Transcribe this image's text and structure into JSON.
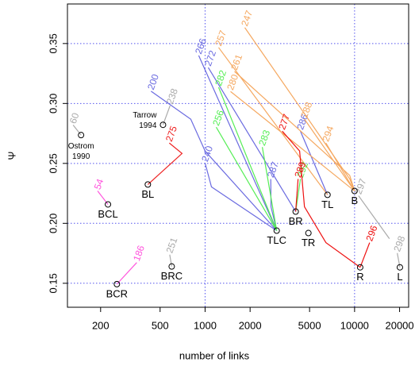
{
  "chart_data": {
    "type": "line",
    "x_label": "number of links",
    "y_label": "Ψ",
    "xscale": "log",
    "grid": true,
    "grid_color": "#5555ee",
    "xlim": [
      120,
      23000
    ],
    "ylim": [
      0.13,
      0.383
    ],
    "xticks": [
      200,
      500,
      1000,
      2000,
      5000,
      10000,
      20000
    ],
    "yticks": [
      0.15,
      {
        "value": 0.2,
        "label": "0.20"
      },
      0.25,
      {
        "value": 0.3,
        "label": "0.30"
      },
      0.35
    ],
    "series": [
      {
        "name": "60",
        "color": "#aaaaaa",
        "x": [
          148,
          131
        ],
        "values": [
          0.2736,
          0.282
        ]
      },
      {
        "name": "238",
        "color": "#aaaaaa",
        "x": [
          523,
          583
        ],
        "values": [
          0.2822,
          0.2982
        ]
      },
      {
        "name": "275",
        "color": "#ee2222",
        "x": [
          414,
          701,
          576
        ],
        "values": [
          0.2324,
          0.2583,
          0.267
        ]
      },
      {
        "name": "54",
        "color": "#ff55dd",
        "x": [
          224,
          191
        ],
        "values": [
          0.2158,
          0.227
        ]
      },
      {
        "name": "186",
        "color": "#ff55dd",
        "x": [
          257,
          349
        ],
        "values": [
          0.1493,
          0.1673
        ]
      },
      {
        "name": "251",
        "color": "#aaaaaa",
        "x": [
          598,
          580
        ],
        "values": [
          0.164,
          0.1739
        ]
      },
      {
        "name": "240",
        "color": "#6a6ae0",
        "x": [
          3013,
          1103,
          1000
        ],
        "values": [
          0.1939,
          0.2304,
          0.2503
        ]
      },
      {
        "name": "200",
        "color": "#6a6ae0",
        "x": [
          3013,
          1000,
          802,
          435
        ],
        "values": [
          0.1939,
          0.2603,
          0.2869,
          0.3102
        ]
      },
      {
        "name": "266",
        "color": "#6a6ae0",
        "x": [
          3013,
          906
        ],
        "values": [
          0.1939,
          0.34
        ]
      },
      {
        "name": "272",
        "color": "#6a6ae0",
        "x": [
          4036,
          1050
        ],
        "values": [
          0.2098,
          0.33
        ]
      },
      {
        "name": "287",
        "color": "#6a6ae0",
        "x": [
          3013,
          2760,
          2750
        ],
        "values": [
          0.1939,
          0.2138,
          0.237
        ]
      },
      {
        "name": "286",
        "color": "#6a6ae0",
        "x": [
          6590,
          4342
        ],
        "values": [
          0.2238,
          0.2769
        ]
      },
      {
        "name": "247",
        "color": "#f5a860",
        "x": [
          10000,
          9280,
          1843
        ],
        "values": [
          0.227,
          0.237,
          0.3633
        ]
      },
      {
        "name": "261",
        "color": "#f5a860",
        "x": [
          10000,
          9280,
          1573
        ],
        "values": [
          0.227,
          0.24,
          0.3267
        ]
      },
      {
        "name": "280",
        "color": "#f5a860",
        "x": [
          10000,
          1480
        ],
        "values": [
          0.227,
          0.31
        ]
      },
      {
        "name": "257",
        "color": "#f5a860",
        "x": [
          6590,
          1231
        ],
        "values": [
          0.2238,
          0.3467
        ]
      },
      {
        "name": "288",
        "color": "#f5a860",
        "x": [
          10000,
          4621
        ],
        "values": [
          0.227,
          0.2869
        ]
      },
      {
        "name": "294",
        "color": "#f5a860",
        "x": [
          10000,
          6430
        ],
        "values": [
          0.227,
          0.267
        ]
      },
      {
        "name": "282",
        "color": "#55ee55",
        "x": [
          3013,
          1231
        ],
        "values": [
          0.1939,
          0.3135
        ]
      },
      {
        "name": "256",
        "color": "#55ee55",
        "x": [
          3013,
          1187
        ],
        "values": [
          0.1939,
          0.2802
        ]
      },
      {
        "name": "283",
        "color": "#55ee55",
        "x": [
          3013,
          2414
        ],
        "values": [
          0.1939,
          0.2636
        ]
      },
      {
        "name": "292",
        "color": "#55ee55",
        "x": [
          4036,
          4342
        ],
        "values": [
          0.2098,
          0.237
        ]
      },
      {
        "name": "277",
        "color": "#ee1111",
        "x": [
          10900,
          6430,
          4621,
          4290,
          3280
        ],
        "values": [
          0.1633,
          0.1839,
          0.2138,
          0.2603,
          0.2769
        ]
      },
      {
        "name": "289",
        "color": "#ee1111",
        "x": [
          4036,
          4188
        ],
        "values": [
          0.2098,
          0.237
        ]
      },
      {
        "name": "296",
        "color": "#ee1111",
        "x": [
          10900,
          12610
        ],
        "values": [
          0.1633,
          0.1839
        ]
      },
      {
        "name": "297",
        "color": "#aaaaaa",
        "x": [
          17100,
          10630
        ],
        "values": [
          0.1872,
          0.223
        ]
      },
      {
        "name": "298",
        "color": "#aaaaaa",
        "x": [
          20100,
          19300
        ],
        "values": [
          0.1633,
          0.1752
        ]
      }
    ],
    "points": [
      {
        "label": [
          "TLC"
        ],
        "x": 3013,
        "y": 0.1939
      },
      {
        "label": [
          "BR"
        ],
        "x": 4036,
        "y": 0.2098
      },
      {
        "label": [
          "TR"
        ],
        "x": 4910,
        "y": 0.1919
      },
      {
        "label": [
          "TL"
        ],
        "x": 6590,
        "y": 0.2238
      },
      {
        "label": [
          "B"
        ],
        "x": 10000,
        "y": 0.227
      },
      {
        "label": [
          "R"
        ],
        "x": 10900,
        "y": 0.1633
      },
      {
        "label": [
          "L"
        ],
        "x": 20100,
        "y": 0.1633
      },
      {
        "label": [
          "BL"
        ],
        "x": 414,
        "y": 0.2324
      },
      {
        "label": [
          "BCL"
        ],
        "x": 224,
        "y": 0.2158
      },
      {
        "label": [
          "BCR"
        ],
        "x": 257,
        "y": 0.1493
      },
      {
        "label": [
          "BRC"
        ],
        "x": 598,
        "y": 0.164
      },
      {
        "label": [
          "Tarrow",
          "1994"
        ],
        "x": 523,
        "y": 0.2822
      },
      {
        "label": [
          "Ostrom",
          "1990"
        ],
        "x": 148,
        "y": 0.2736
      }
    ]
  }
}
